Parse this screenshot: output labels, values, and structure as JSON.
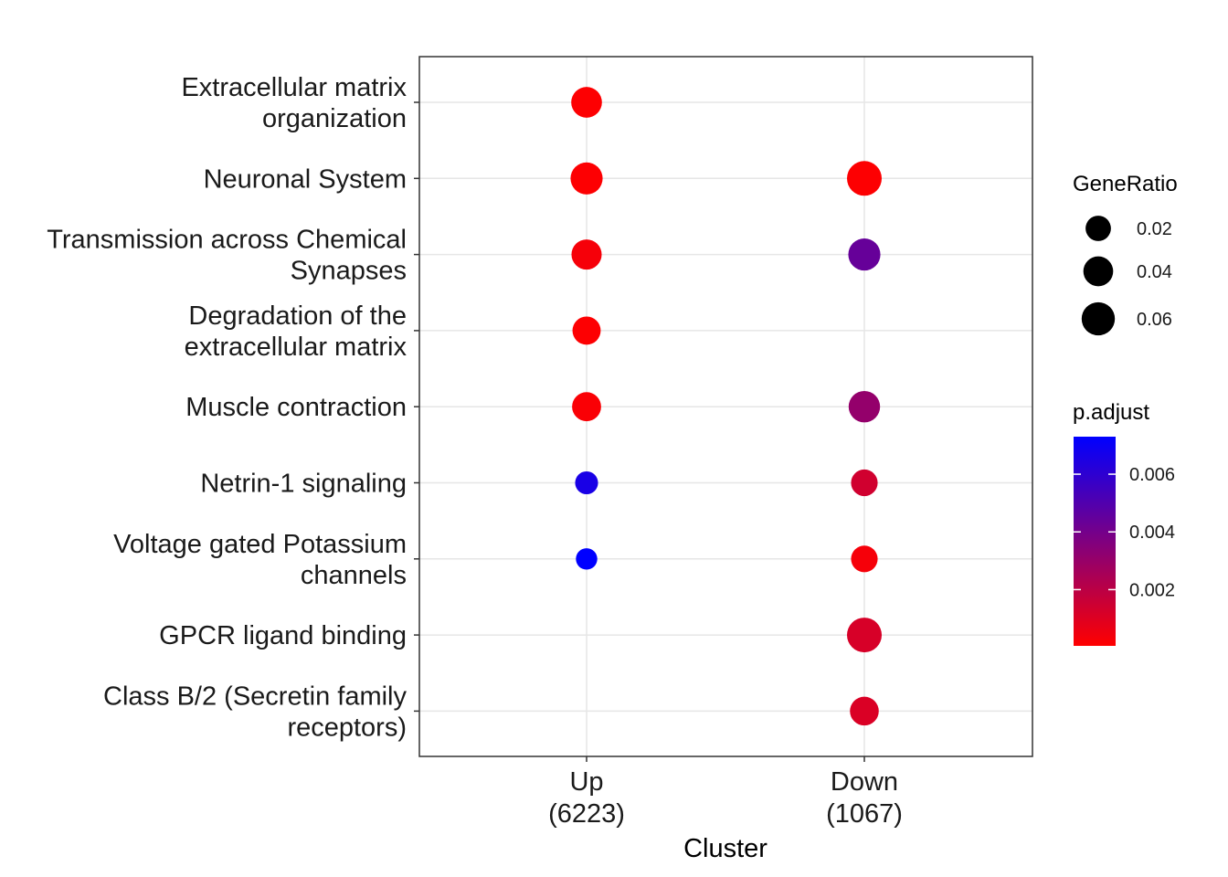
{
  "chart_data": {
    "type": "scatter",
    "xlabel": "Cluster",
    "ylabel": "",
    "x_categories": [
      {
        "line1": "Up",
        "line2": "(6223)"
      },
      {
        "line1": "Down",
        "line2": "(1067)"
      }
    ],
    "y_categories": [
      {
        "lines": [
          "Extracellular matrix",
          "organization"
        ]
      },
      {
        "lines": [
          "Neuronal System"
        ]
      },
      {
        "lines": [
          "Transmission across Chemical",
          "Synapses"
        ]
      },
      {
        "lines": [
          "Degradation of the",
          "extracellular matrix"
        ]
      },
      {
        "lines": [
          "Muscle contraction"
        ]
      },
      {
        "lines": [
          "Netrin-1 signaling"
        ]
      },
      {
        "lines": [
          "Voltage gated Potassium",
          "channels"
        ]
      },
      {
        "lines": [
          "GPCR ligand binding"
        ]
      },
      {
        "lines": [
          "Class B/2 (Secretin family",
          "receptors)"
        ]
      }
    ],
    "points": [
      {
        "x": 0,
        "y": 0,
        "gene_ratio": 0.045,
        "p_adjust": 0.0001
      },
      {
        "x": 0,
        "y": 1,
        "gene_ratio": 0.053,
        "p_adjust": 0.0001
      },
      {
        "x": 1,
        "y": 1,
        "gene_ratio": 0.07,
        "p_adjust": 0.0001
      },
      {
        "x": 0,
        "y": 2,
        "gene_ratio": 0.042,
        "p_adjust": 0.0003
      },
      {
        "x": 1,
        "y": 2,
        "gene_ratio": 0.053,
        "p_adjust": 0.0044
      },
      {
        "x": 0,
        "y": 3,
        "gene_ratio": 0.032,
        "p_adjust": 0.0001
      },
      {
        "x": 0,
        "y": 4,
        "gene_ratio": 0.036,
        "p_adjust": 0.0002
      },
      {
        "x": 1,
        "y": 4,
        "gene_ratio": 0.049,
        "p_adjust": 0.0031
      },
      {
        "x": 0,
        "y": 5,
        "gene_ratio": 0.012,
        "p_adjust": 0.0066
      },
      {
        "x": 1,
        "y": 5,
        "gene_ratio": 0.025,
        "p_adjust": 0.0014
      },
      {
        "x": 0,
        "y": 6,
        "gene_ratio": 0.008,
        "p_adjust": 0.0073
      },
      {
        "x": 1,
        "y": 6,
        "gene_ratio": 0.025,
        "p_adjust": 0.0003
      },
      {
        "x": 1,
        "y": 7,
        "gene_ratio": 0.07,
        "p_adjust": 0.0012
      },
      {
        "x": 1,
        "y": 8,
        "gene_ratio": 0.035,
        "p_adjust": 0.0011
      }
    ],
    "size_legend": {
      "title": "GeneRatio",
      "entries": [
        {
          "value": 0.02,
          "label": "0.02"
        },
        {
          "value": 0.04,
          "label": "0.04"
        },
        {
          "value": 0.06,
          "label": "0.06"
        }
      ]
    },
    "color_legend": {
      "title": "p.adjust",
      "low_color": "#FF0000",
      "high_color": "#0000FF",
      "min": 5e-05,
      "max": 0.0073,
      "ticks": [
        {
          "value": 0.006,
          "label": "0.006"
        },
        {
          "value": 0.004,
          "label": "0.004"
        },
        {
          "value": 0.002,
          "label": "0.002"
        }
      ]
    },
    "grid": true,
    "legend_position": "right"
  }
}
